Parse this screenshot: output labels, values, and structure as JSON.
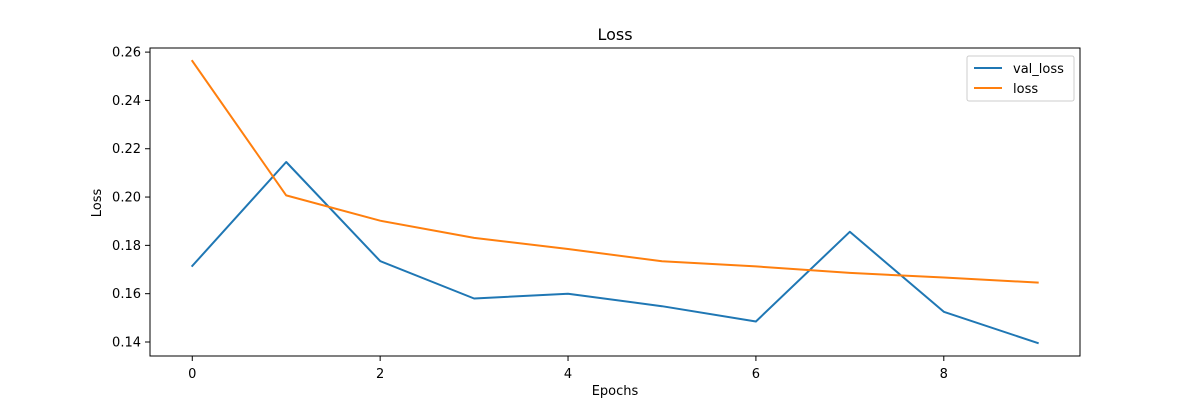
{
  "chart_data": {
    "type": "line",
    "title": "Loss",
    "xlabel": "Epochs",
    "ylabel": "Loss",
    "xlim": [
      -0.45,
      9.45
    ],
    "ylim": [
      0.1342,
      0.2617
    ],
    "x_ticks": [
      0,
      2,
      4,
      6,
      8
    ],
    "x_tick_labels": [
      "0",
      "2",
      "4",
      "6",
      "8"
    ],
    "y_ticks": [
      0.14,
      0.16,
      0.18,
      0.2,
      0.22,
      0.24,
      0.26
    ],
    "y_tick_labels": [
      "0.14",
      "0.16",
      "0.18",
      "0.20",
      "0.22",
      "0.24",
      "0.26"
    ],
    "grid": false,
    "legend_position": "top-right",
    "x": [
      0,
      1,
      2,
      3,
      4,
      5,
      6,
      7,
      8,
      9
    ],
    "series": [
      {
        "name": "val_loss",
        "color": "#1f77b4",
        "values": [
          0.1715,
          0.2145,
          0.1735,
          0.158,
          0.16,
          0.1548,
          0.1485,
          0.1856,
          0.1525,
          0.1396
        ]
      },
      {
        "name": "loss",
        "color": "#ff7f0e",
        "values": [
          0.2563,
          0.2007,
          0.1902,
          0.1831,
          0.1785,
          0.1734,
          0.1713,
          0.1686,
          0.1667,
          0.1646
        ]
      }
    ]
  }
}
